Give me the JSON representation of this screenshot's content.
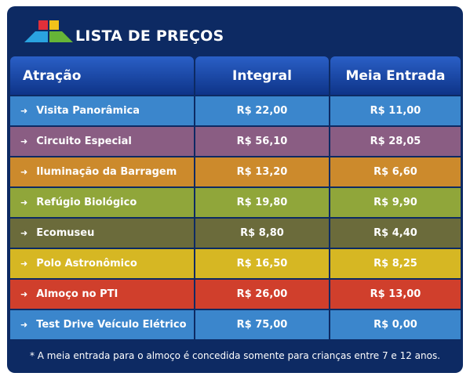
{
  "header": {
    "title": "LISTA DE PREÇOS"
  },
  "table": {
    "columns": [
      "Atração",
      "Integral",
      "Meia Entrada"
    ],
    "rows": [
      {
        "name": "Visita Panorâmica",
        "integral": "R$ 22,00",
        "meia": "R$ 11,00",
        "color": "#3b86cc"
      },
      {
        "name": "Circuito Especial",
        "integral": "R$ 56,10",
        "meia": "R$ 28,05",
        "color": "#8a5d83"
      },
      {
        "name": "Iluminação da Barragem",
        "integral": "R$ 13,20",
        "meia": "R$ 6,60",
        "color": "#cc8a2c"
      },
      {
        "name": "Refúgio Biológico",
        "integral": "R$ 19,80",
        "meia": "R$ 9,90",
        "color": "#90a63a"
      },
      {
        "name": "Ecomuseu",
        "integral": "R$ 8,80",
        "meia": "R$ 4,40",
        "color": "#6b6b3b"
      },
      {
        "name": "Polo Astronômico",
        "integral": "R$ 16,50",
        "meia": "R$ 8,25",
        "color": "#d6b723"
      },
      {
        "name": "Almoço no PTI",
        "integral": "R$ 26,00",
        "meia": "R$ 13,00",
        "color": "#d03f2c"
      },
      {
        "name": "Test Drive Veículo Elétrico",
        "integral": "R$ 75,00",
        "meia": "R$ 0,00",
        "color": "#3b86cc"
      }
    ]
  },
  "footnote": "* A meia entrada para o almoço é concedida somente para crianças entre 7 e 12 anos.",
  "icons": {
    "row_marker": "arrow-right-icon",
    "logo": "logo-icon"
  }
}
